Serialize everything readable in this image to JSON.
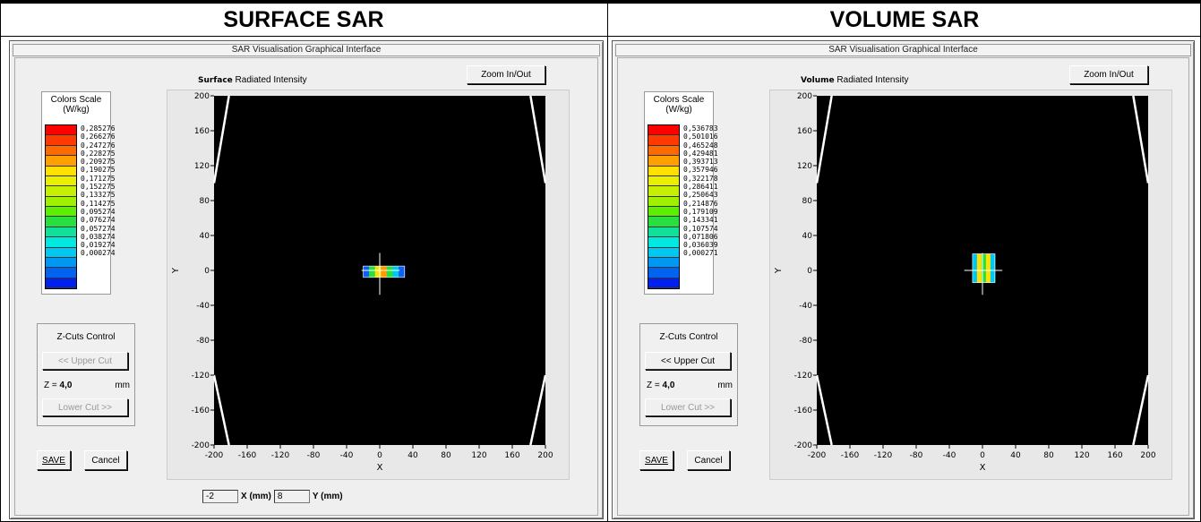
{
  "headers": {
    "left": "SURFACE SAR",
    "right": "VOLUME SAR"
  },
  "panels": [
    {
      "id": "surface",
      "window_title": "SAR Visualisation Graphical Interface",
      "intensity_bold": "Surface",
      "intensity_rest": "Radiated Intensity",
      "zoom_label": "Zoom In/Out",
      "scale_title_1": "Colors Scale",
      "scale_title_2": "(W/kg)",
      "scale_colors": [
        "#ff0000",
        "#ff3a00",
        "#ff6a00",
        "#ffa000",
        "#ffe000",
        "#e8f000",
        "#c6f000",
        "#a0f000",
        "#5cef00",
        "#27e040",
        "#10e09a",
        "#00e8e0",
        "#00c8f0",
        "#0098f0",
        "#0064f0",
        "#0020f0"
      ],
      "scale_values": [
        "0,285276",
        "0,266276",
        "0,247276",
        "0,228275",
        "0,209275",
        "0,190275",
        "0,171275",
        "0,152275",
        "0,133275",
        "0,114275",
        "0,095274",
        "0,076274",
        "0,057274",
        "0,038274",
        "0,019274",
        "0,000274"
      ],
      "zcuts_title": "Z-Cuts Control",
      "upper_cut": "<< Upper Cut",
      "upper_disabled": true,
      "z_prefix": "Z = ",
      "z_value": "4,0",
      "z_unit": "mm",
      "lower_cut": "Lower Cut >>",
      "save_label": "SAVE",
      "cancel_label": "Cancel",
      "show_coords": true,
      "x_mm": "-2",
      "x_mm_label": "X (mm)",
      "y_mm": "8",
      "y_mm_label": "Y (mm)",
      "sar_map": {
        "x_range": [
          -20,
          30
        ],
        "y_range": [
          -8,
          5
        ],
        "colors": [
          "#1060f0",
          "#27e040",
          "#ffe000",
          "#ff9a00",
          "#27e040",
          "#00c8f0",
          "#1060f0"
        ]
      }
    },
    {
      "id": "volume",
      "window_title": "SAR Visualisation Graphical Interface",
      "intensity_bold": "Volume",
      "intensity_rest": "Radiated Intensity",
      "zoom_label": "Zoom In/Out",
      "scale_title_1": "Colors Scale",
      "scale_title_2": "(W/kg)",
      "scale_colors": [
        "#ff0000",
        "#ff3a00",
        "#ff6a00",
        "#ffa000",
        "#ffe000",
        "#e8f000",
        "#c6f000",
        "#a0f000",
        "#5cef00",
        "#27e040",
        "#10e09a",
        "#00e8e0",
        "#00c8f0",
        "#0098f0",
        "#0064f0",
        "#0020f0"
      ],
      "scale_values": [
        "0,536783",
        "0,501016",
        "0,465248",
        "0,429481",
        "0,393713",
        "0,357946",
        "0,322178",
        "0,286411",
        "0,250643",
        "0,214876",
        "0,179109",
        "0,143341",
        "0,107574",
        "0,071806",
        "0,036039",
        "0,000271"
      ],
      "zcuts_title": "Z-Cuts Control",
      "upper_cut": "<< Upper Cut",
      "upper_disabled": false,
      "z_prefix": "Z = ",
      "z_value": "4,0",
      "z_unit": "mm",
      "lower_cut": "Lower Cut >>",
      "save_label": "SAVE",
      "cancel_label": "Cancel",
      "show_coords": false,
      "sar_map": {
        "x_range": [
          -12,
          15
        ],
        "y_range": [
          -14,
          19
        ],
        "colors": [
          "#00c8f0",
          "#ffe000",
          "#27e040",
          "#ffe000",
          "#00c8f0"
        ]
      }
    }
  ],
  "plot": {
    "x_ticks": [
      "-200",
      "-160",
      "-120",
      "-80",
      "-40",
      "0",
      "40",
      "80",
      "120",
      "160",
      "200"
    ],
    "y_ticks": [
      "200",
      "160",
      "120",
      "80",
      "40",
      "0",
      "-40",
      "-80",
      "-120",
      "-160",
      "-200"
    ],
    "x_label": "X",
    "y_label": "Y",
    "range": [
      -200,
      200
    ]
  },
  "colors": {
    "plot_bg": "#000000",
    "panel_bg": "#efefef",
    "outline": "#ffffff"
  }
}
